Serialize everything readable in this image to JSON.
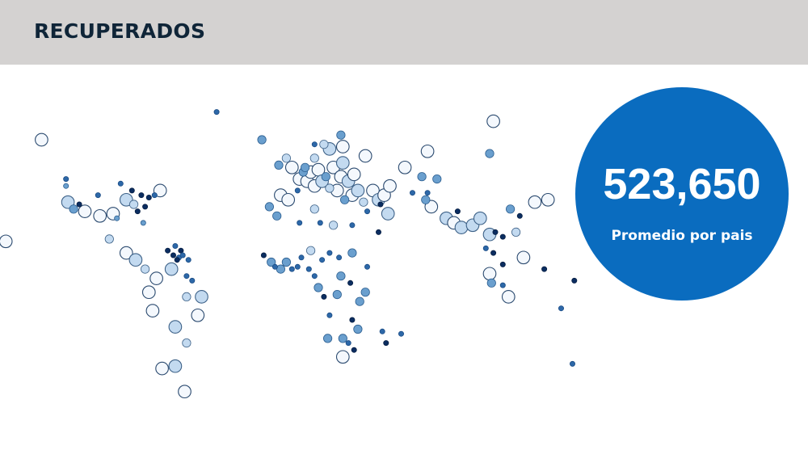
{
  "header": {
    "title": "RECUPERADOS"
  },
  "kpi": {
    "value": "523,650",
    "label": "Promedio por pais"
  },
  "colors": {
    "header_bg": "#d4d2d1",
    "title": "#0f2538",
    "kpi_bg": "#0a6cbf",
    "marker_large_fill": "#f4f8fd",
    "marker_pale_fill": "#c3daf0",
    "marker_mid_fill": "#6a9fce",
    "marker_dark_fill": "#2d68a8",
    "marker_darkest_fill": "#0b2d60"
  },
  "chart_data": {
    "type": "scatter",
    "description": "Bubble map of countries; bubble size and color encode recovered cases",
    "points": [
      {
        "lon": -135,
        "lat": 64,
        "size": "large",
        "tone": "white"
      },
      {
        "lon": -154,
        "lat": 20,
        "size": "large",
        "tone": "white"
      },
      {
        "lon": -122,
        "lat": 47,
        "size": "small",
        "tone": "dark"
      },
      {
        "lon": -122,
        "lat": 44,
        "size": "small",
        "tone": "mid"
      },
      {
        "lon": -121,
        "lat": 37,
        "size": "large",
        "tone": "pale"
      },
      {
        "lon": -118,
        "lat": 34,
        "size": "medium",
        "tone": "mid"
      },
      {
        "lon": -115,
        "lat": 36,
        "size": "small",
        "tone": "darkest"
      },
      {
        "lon": -112,
        "lat": 33,
        "size": "large",
        "tone": "white"
      },
      {
        "lon": -105,
        "lat": 40,
        "size": "small",
        "tone": "dark"
      },
      {
        "lon": -104,
        "lat": 31,
        "size": "large",
        "tone": "white"
      },
      {
        "lon": -97,
        "lat": 32,
        "size": "large",
        "tone": "white"
      },
      {
        "lon": -95,
        "lat": 30,
        "size": "small",
        "tone": "mid"
      },
      {
        "lon": -93,
        "lat": 45,
        "size": "small",
        "tone": "dark"
      },
      {
        "lon": -90,
        "lat": 38,
        "size": "large",
        "tone": "pale"
      },
      {
        "lon": -87,
        "lat": 42,
        "size": "small",
        "tone": "darkest"
      },
      {
        "lon": -86,
        "lat": 36,
        "size": "medium",
        "tone": "pale"
      },
      {
        "lon": -84,
        "lat": 33,
        "size": "small",
        "tone": "darkest"
      },
      {
        "lon": -82,
        "lat": 40,
        "size": "small",
        "tone": "darkest"
      },
      {
        "lon": -81,
        "lat": 28,
        "size": "small",
        "tone": "mid"
      },
      {
        "lon": -80,
        "lat": 35,
        "size": "small",
        "tone": "darkest"
      },
      {
        "lon": -78,
        "lat": 39,
        "size": "small",
        "tone": "darkest"
      },
      {
        "lon": -75,
        "lat": 40,
        "size": "small",
        "tone": "dark"
      },
      {
        "lon": -72,
        "lat": 42,
        "size": "large",
        "tone": "white"
      },
      {
        "lon": -99,
        "lat": 21,
        "size": "medium",
        "tone": "pale"
      },
      {
        "lon": -90,
        "lat": 15,
        "size": "large",
        "tone": "white"
      },
      {
        "lon": -85,
        "lat": 12,
        "size": "large",
        "tone": "pale"
      },
      {
        "lon": -80,
        "lat": 8,
        "size": "medium",
        "tone": "pale"
      },
      {
        "lon": -74,
        "lat": 4,
        "size": "large",
        "tone": "white"
      },
      {
        "lon": -66,
        "lat": 8,
        "size": "large",
        "tone": "pale"
      },
      {
        "lon": -58,
        "lat": -4,
        "size": "medium",
        "tone": "pale"
      },
      {
        "lon": -78,
        "lat": -2,
        "size": "large",
        "tone": "white"
      },
      {
        "lon": -76,
        "lat": -10,
        "size": "large",
        "tone": "white"
      },
      {
        "lon": -64,
        "lat": -17,
        "size": "large",
        "tone": "pale"
      },
      {
        "lon": -52,
        "lat": -12,
        "size": "large",
        "tone": "white"
      },
      {
        "lon": -58,
        "lat": -24,
        "size": "medium",
        "tone": "pale"
      },
      {
        "lon": -64,
        "lat": -34,
        "size": "large",
        "tone": "pale"
      },
      {
        "lon": -71,
        "lat": -35,
        "size": "large",
        "tone": "white"
      },
      {
        "lon": -59,
        "lat": -45,
        "size": "large",
        "tone": "white"
      },
      {
        "lon": -50,
        "lat": -4,
        "size": "large",
        "tone": "pale"
      },
      {
        "lon": -62,
        "lat": 13,
        "size": "small",
        "tone": "dark"
      },
      {
        "lon": -64,
        "lat": 18,
        "size": "small",
        "tone": "dark"
      },
      {
        "lon": -61,
        "lat": 16,
        "size": "small",
        "tone": "darkest"
      },
      {
        "lon": -60,
        "lat": 14,
        "size": "small",
        "tone": "dark"
      },
      {
        "lon": -57,
        "lat": 12,
        "size": "small",
        "tone": "dark"
      },
      {
        "lon": -58,
        "lat": 5,
        "size": "small",
        "tone": "dark"
      },
      {
        "lon": -55,
        "lat": 3,
        "size": "small",
        "tone": "dark"
      },
      {
        "lon": -65,
        "lat": 14,
        "size": "small",
        "tone": "darkest"
      },
      {
        "lon": -68,
        "lat": 16,
        "size": "small",
        "tone": "darkest"
      },
      {
        "lon": -63,
        "lat": 12,
        "size": "small",
        "tone": "darkest"
      },
      {
        "lon": -42,
        "lat": 76,
        "size": "small",
        "tone": "dark"
      },
      {
        "lon": -18,
        "lat": 64,
        "size": "medium",
        "tone": "mid"
      },
      {
        "lon": -9,
        "lat": 53,
        "size": "medium",
        "tone": "mid"
      },
      {
        "lon": -5,
        "lat": 56,
        "size": "medium",
        "tone": "pale"
      },
      {
        "lon": -8,
        "lat": 40,
        "size": "large",
        "tone": "white"
      },
      {
        "lon": -4,
        "lat": 38,
        "size": "large",
        "tone": "white"
      },
      {
        "lon": -2,
        "lat": 52,
        "size": "large",
        "tone": "white"
      },
      {
        "lon": 2,
        "lat": 47,
        "size": "large",
        "tone": "white"
      },
      {
        "lon": 4,
        "lat": 50,
        "size": "medium",
        "tone": "mid"
      },
      {
        "lon": 5,
        "lat": 52,
        "size": "medium",
        "tone": "mid"
      },
      {
        "lon": 6,
        "lat": 46,
        "size": "large",
        "tone": "white"
      },
      {
        "lon": 8,
        "lat": 50,
        "size": "large",
        "tone": "white"
      },
      {
        "lon": 10,
        "lat": 44,
        "size": "large",
        "tone": "white"
      },
      {
        "lon": 10,
        "lat": 56,
        "size": "medium",
        "tone": "pale"
      },
      {
        "lon": 12,
        "lat": 51,
        "size": "large",
        "tone": "white"
      },
      {
        "lon": 14,
        "lat": 46,
        "size": "large",
        "tone": "pale"
      },
      {
        "lon": 16,
        "lat": 48,
        "size": "medium",
        "tone": "mid"
      },
      {
        "lon": 18,
        "lat": 43,
        "size": "medium",
        "tone": "pale"
      },
      {
        "lon": 20,
        "lat": 52,
        "size": "large",
        "tone": "white"
      },
      {
        "lon": 22,
        "lat": 42,
        "size": "large",
        "tone": "white"
      },
      {
        "lon": 24,
        "lat": 48,
        "size": "large",
        "tone": "white"
      },
      {
        "lon": 25,
        "lat": 54,
        "size": "large",
        "tone": "pale"
      },
      {
        "lon": 18,
        "lat": 60,
        "size": "large",
        "tone": "pale"
      },
      {
        "lon": 15,
        "lat": 62,
        "size": "medium",
        "tone": "pale"
      },
      {
        "lon": 25,
        "lat": 61,
        "size": "large",
        "tone": "white"
      },
      {
        "lon": 24,
        "lat": 66,
        "size": "medium",
        "tone": "mid"
      },
      {
        "lon": 10,
        "lat": 62,
        "size": "small",
        "tone": "dark"
      },
      {
        "lon": 1,
        "lat": 42,
        "size": "small",
        "tone": "dark"
      },
      {
        "lon": 28,
        "lat": 46,
        "size": "large",
        "tone": "pale"
      },
      {
        "lon": 31,
        "lat": 49,
        "size": "large",
        "tone": "white"
      },
      {
        "lon": 30,
        "lat": 40,
        "size": "large",
        "tone": "white"
      },
      {
        "lon": 33,
        "lat": 42,
        "size": "large",
        "tone": "pale"
      },
      {
        "lon": 36,
        "lat": 37,
        "size": "medium",
        "tone": "pale"
      },
      {
        "lon": 26,
        "lat": 38,
        "size": "medium",
        "tone": "mid"
      },
      {
        "lon": 37,
        "lat": 57,
        "size": "large",
        "tone": "white"
      },
      {
        "lon": 38,
        "lat": 33,
        "size": "small",
        "tone": "dark"
      },
      {
        "lon": 41,
        "lat": 42,
        "size": "large",
        "tone": "white"
      },
      {
        "lon": 44,
        "lat": 38,
        "size": "large",
        "tone": "pale"
      },
      {
        "lon": 47,
        "lat": 40,
        "size": "large",
        "tone": "white"
      },
      {
        "lon": 50,
        "lat": 44,
        "size": "large",
        "tone": "white"
      },
      {
        "lon": 45,
        "lat": 36,
        "size": "small",
        "tone": "darkest"
      },
      {
        "lon": 49,
        "lat": 32,
        "size": "large",
        "tone": "pale"
      },
      {
        "lon": 58,
        "lat": 52,
        "size": "large",
        "tone": "white"
      },
      {
        "lon": 70,
        "lat": 59,
        "size": "large",
        "tone": "white"
      },
      {
        "lon": 67,
        "lat": 48,
        "size": "medium",
        "tone": "mid"
      },
      {
        "lon": 62,
        "lat": 41,
        "size": "small",
        "tone": "dark"
      },
      {
        "lon": 70,
        "lat": 41,
        "size": "small",
        "tone": "dark"
      },
      {
        "lon": 75,
        "lat": 47,
        "size": "medium",
        "tone": "mid"
      },
      {
        "lon": 69,
        "lat": 38,
        "size": "medium",
        "tone": "mid"
      },
      {
        "lon": 72,
        "lat": 35,
        "size": "large",
        "tone": "white"
      },
      {
        "lon": 80,
        "lat": 30,
        "size": "large",
        "tone": "pale"
      },
      {
        "lon": 84,
        "lat": 28,
        "size": "large",
        "tone": "white"
      },
      {
        "lon": 88,
        "lat": 26,
        "size": "large",
        "tone": "pale"
      },
      {
        "lon": 94,
        "lat": 27,
        "size": "large",
        "tone": "pale"
      },
      {
        "lon": 98,
        "lat": 30,
        "size": "large",
        "tone": "pale"
      },
      {
        "lon": 86,
        "lat": 33,
        "size": "small",
        "tone": "darkest"
      },
      {
        "lon": 103,
        "lat": 23,
        "size": "large",
        "tone": "pale"
      },
      {
        "lon": 106,
        "lat": 24,
        "size": "small",
        "tone": "darkest"
      },
      {
        "lon": 101,
        "lat": 17,
        "size": "small",
        "tone": "dark"
      },
      {
        "lon": 105,
        "lat": 15,
        "size": "small",
        "tone": "darkest"
      },
      {
        "lon": 110,
        "lat": 22,
        "size": "small",
        "tone": "darkest"
      },
      {
        "lon": 103,
        "lat": 6,
        "size": "large",
        "tone": "white"
      },
      {
        "lon": 110,
        "lat": 1,
        "size": "small",
        "tone": "dark"
      },
      {
        "lon": 110,
        "lat": 10,
        "size": "small",
        "tone": "darkest"
      },
      {
        "lon": 104,
        "lat": 2,
        "size": "medium",
        "tone": "mid"
      },
      {
        "lon": 113,
        "lat": -4,
        "size": "large",
        "tone": "white"
      },
      {
        "lon": 114,
        "lat": 34,
        "size": "medium",
        "tone": "mid"
      },
      {
        "lon": 117,
        "lat": 24,
        "size": "medium",
        "tone": "pale"
      },
      {
        "lon": 119,
        "lat": 31,
        "size": "small",
        "tone": "darkest"
      },
      {
        "lon": 121,
        "lat": 13,
        "size": "large",
        "tone": "white"
      },
      {
        "lon": 127,
        "lat": 37,
        "size": "large",
        "tone": "white"
      },
      {
        "lon": 134,
        "lat": 38,
        "size": "large",
        "tone": "white"
      },
      {
        "lon": 132,
        "lat": 8,
        "size": "small",
        "tone": "darkest"
      },
      {
        "lon": 103,
        "lat": 58,
        "size": "medium",
        "tone": "mid"
      },
      {
        "lon": 105,
        "lat": 72,
        "size": "large",
        "tone": "white"
      },
      {
        "lon": 141,
        "lat": -9,
        "size": "small",
        "tone": "dark"
      },
      {
        "lon": 148,
        "lat": 3,
        "size": "small",
        "tone": "darkest"
      },
      {
        "lon": 147,
        "lat": -33,
        "size": "small",
        "tone": "dark"
      },
      {
        "lon": -14,
        "lat": 35,
        "size": "medium",
        "tone": "mid"
      },
      {
        "lon": -10,
        "lat": 31,
        "size": "medium",
        "tone": "mid"
      },
      {
        "lon": 2,
        "lat": 28,
        "size": "small",
        "tone": "dark"
      },
      {
        "lon": 10,
        "lat": 34,
        "size": "medium",
        "tone": "pale"
      },
      {
        "lon": 13,
        "lat": 28,
        "size": "small",
        "tone": "dark"
      },
      {
        "lon": 20,
        "lat": 27,
        "size": "medium",
        "tone": "pale"
      },
      {
        "lon": 30,
        "lat": 27,
        "size": "small",
        "tone": "dark"
      },
      {
        "lon": 44,
        "lat": 24,
        "size": "small",
        "tone": "darkest"
      },
      {
        "lon": -13,
        "lat": 11,
        "size": "medium",
        "tone": "mid"
      },
      {
        "lon": -17,
        "lat": 14,
        "size": "small",
        "tone": "darkest"
      },
      {
        "lon": -11,
        "lat": 9,
        "size": "small",
        "tone": "dark"
      },
      {
        "lon": -8,
        "lat": 8,
        "size": "medium",
        "tone": "mid"
      },
      {
        "lon": -5,
        "lat": 11,
        "size": "medium",
        "tone": "mid"
      },
      {
        "lon": -2,
        "lat": 8,
        "size": "small",
        "tone": "dark"
      },
      {
        "lon": 1,
        "lat": 9,
        "size": "small",
        "tone": "dark"
      },
      {
        "lon": 3,
        "lat": 13,
        "size": "small",
        "tone": "dark"
      },
      {
        "lon": 7,
        "lat": 8,
        "size": "small",
        "tone": "dark"
      },
      {
        "lon": 8,
        "lat": 16,
        "size": "medium",
        "tone": "pale"
      },
      {
        "lon": 14,
        "lat": 12,
        "size": "small",
        "tone": "dark"
      },
      {
        "lon": 18,
        "lat": 15,
        "size": "small",
        "tone": "dark"
      },
      {
        "lon": 23,
        "lat": 13,
        "size": "small",
        "tone": "dark"
      },
      {
        "lon": 30,
        "lat": 15,
        "size": "medium",
        "tone": "mid"
      },
      {
        "lon": 38,
        "lat": 9,
        "size": "small",
        "tone": "dark"
      },
      {
        "lon": 10,
        "lat": 5,
        "size": "small",
        "tone": "dark"
      },
      {
        "lon": 12,
        "lat": 0,
        "size": "medium",
        "tone": "mid"
      },
      {
        "lon": 15,
        "lat": -4,
        "size": "small",
        "tone": "darkest"
      },
      {
        "lon": 22,
        "lat": -3,
        "size": "medium",
        "tone": "mid"
      },
      {
        "lon": 29,
        "lat": 2,
        "size": "small",
        "tone": "darkest"
      },
      {
        "lon": 24,
        "lat": 5,
        "size": "medium",
        "tone": "mid"
      },
      {
        "lon": 34,
        "lat": -6,
        "size": "medium",
        "tone": "mid"
      },
      {
        "lon": 30,
        "lat": -14,
        "size": "small",
        "tone": "darkest"
      },
      {
        "lon": 18,
        "lat": -12,
        "size": "small",
        "tone": "dark"
      },
      {
        "lon": 17,
        "lat": -22,
        "size": "medium",
        "tone": "mid"
      },
      {
        "lon": 25,
        "lat": -22,
        "size": "medium",
        "tone": "mid"
      },
      {
        "lon": 33,
        "lat": -18,
        "size": "medium",
        "tone": "mid"
      },
      {
        "lon": 37,
        "lat": -2,
        "size": "medium",
        "tone": "mid"
      },
      {
        "lon": 25,
        "lat": -30,
        "size": "large",
        "tone": "white"
      },
      {
        "lon": 31,
        "lat": -27,
        "size": "small",
        "tone": "darkest"
      },
      {
        "lon": 28,
        "lat": -24,
        "size": "small",
        "tone": "dark"
      },
      {
        "lon": 46,
        "lat": -19,
        "size": "small",
        "tone": "dark"
      },
      {
        "lon": 48,
        "lat": -24,
        "size": "small",
        "tone": "darkest"
      },
      {
        "lon": 56,
        "lat": -20,
        "size": "small",
        "tone": "dark"
      }
    ]
  }
}
